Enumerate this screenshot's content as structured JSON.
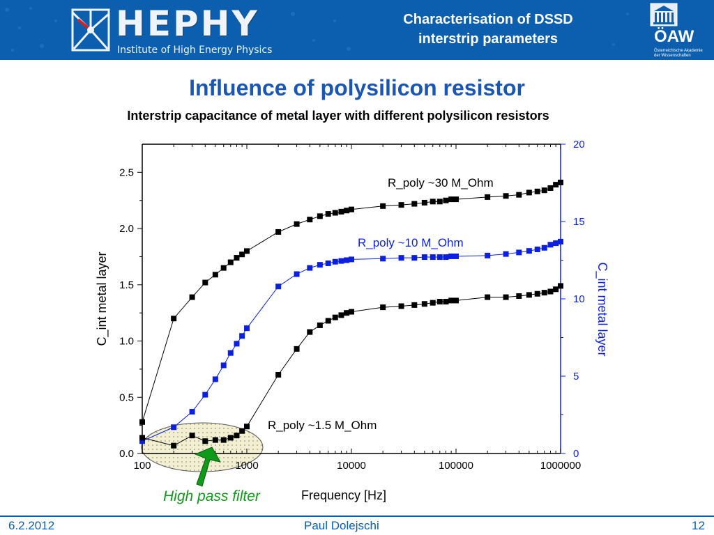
{
  "header": {
    "logo_text": "HEPHY",
    "logo_subtitle": "Institute of High Energy Physics",
    "title_line1": "Characterisation of DSSD",
    "title_line2": "interstrip parameters",
    "oaw_text": "ÖAW",
    "oaw_subtitle": "Österreichische Akademie der Wissenschaften"
  },
  "slide": {
    "title": "Influence of polysilicon resistor",
    "subtitle": "Interstrip capacitance of metal layer with different polysilicon resistors"
  },
  "annotation": {
    "high_pass_filter": "High pass filter"
  },
  "footer": {
    "date": "6.2.2012",
    "author": "Paul Dolejschi",
    "page": "12"
  },
  "colors": {
    "header_bg": "#0b5fae",
    "black_series": "#000000",
    "blue_series": "#0a1fe0",
    "highlight_green": "#109a1a"
  },
  "chart_data": {
    "type": "scatter",
    "xscale": "log",
    "xlabel": "Frequency [Hz]",
    "ylabel": "C_int metal layer",
    "y2label": "C_int metal layer",
    "xlim": [
      100,
      1000000
    ],
    "ylim": [
      0,
      2.75
    ],
    "y2lim": [
      0,
      20
    ],
    "xticks": [
      "100",
      "1000",
      "10000",
      "100000",
      "1000000"
    ],
    "yticks": [
      "0.0",
      "0.5",
      "1.0",
      "1.5",
      "2.0",
      "2.5"
    ],
    "y2ticks": [
      "0",
      "5",
      "10",
      "15",
      "20"
    ],
    "series": [
      {
        "name": "R_poly ~30 M_Ohm",
        "axis": "left",
        "color": "#000000",
        "x": [
          100,
          200,
          300,
          400,
          500,
          600,
          700,
          800,
          900,
          1000,
          2000,
          3000,
          4000,
          5000,
          6000,
          7000,
          8000,
          9000,
          10000,
          20000,
          30000,
          40000,
          50000,
          60000,
          70000,
          80000,
          90000,
          100000,
          200000,
          300000,
          400000,
          500000,
          600000,
          700000,
          800000,
          900000,
          1000000
        ],
        "y": [
          0.28,
          1.2,
          1.39,
          1.52,
          1.59,
          1.65,
          1.7,
          1.74,
          1.77,
          1.8,
          1.97,
          2.04,
          2.08,
          2.11,
          2.13,
          2.14,
          2.15,
          2.16,
          2.17,
          2.2,
          2.21,
          2.22,
          2.23,
          2.24,
          2.24,
          2.25,
          2.26,
          2.26,
          2.28,
          2.29,
          2.3,
          2.32,
          2.33,
          2.34,
          2.36,
          2.39,
          2.41
        ]
      },
      {
        "name": "R_poly ~10 M_Ohm",
        "axis": "right",
        "color": "#0a1fe0",
        "x": [
          100,
          200,
          300,
          400,
          500,
          600,
          700,
          800,
          900,
          1000,
          2000,
          3000,
          4000,
          5000,
          6000,
          7000,
          8000,
          9000,
          10000,
          20000,
          30000,
          40000,
          50000,
          60000,
          70000,
          80000,
          90000,
          100000,
          200000,
          300000,
          400000,
          500000,
          600000,
          700000,
          800000,
          900000,
          1000000
        ],
        "y": [
          0.8,
          1.7,
          2.7,
          3.8,
          4.8,
          5.7,
          6.5,
          7.1,
          7.6,
          8.1,
          10.8,
          11.6,
          12,
          12.2,
          12.3,
          12.4,
          12.45,
          12.5,
          12.55,
          12.6,
          12.65,
          12.65,
          12.7,
          12.7,
          12.7,
          12.7,
          12.75,
          12.75,
          12.8,
          12.9,
          13,
          13.1,
          13.2,
          13.3,
          13.5,
          13.6,
          13.7
        ]
      },
      {
        "name": "R_poly ~1.5 M_Ohm",
        "axis": "left",
        "color": "#000000",
        "x": [
          100,
          200,
          300,
          400,
          500,
          600,
          700,
          800,
          900,
          1000,
          2000,
          3000,
          4000,
          5000,
          6000,
          7000,
          8000,
          9000,
          10000,
          20000,
          30000,
          40000,
          50000,
          60000,
          70000,
          80000,
          90000,
          100000,
          200000,
          300000,
          400000,
          500000,
          600000,
          700000,
          800000,
          900000,
          1000000
        ],
        "y": [
          0.14,
          0.07,
          0.16,
          0.11,
          0.12,
          0.12,
          0.14,
          0.16,
          0.2,
          0.24,
          0.7,
          0.93,
          1.08,
          1.14,
          1.18,
          1.21,
          1.23,
          1.25,
          1.26,
          1.3,
          1.31,
          1.32,
          1.33,
          1.34,
          1.35,
          1.35,
          1.36,
          1.36,
          1.39,
          1.39,
          1.4,
          1.41,
          1.42,
          1.43,
          1.44,
          1.46,
          1.49
        ]
      }
    ]
  }
}
